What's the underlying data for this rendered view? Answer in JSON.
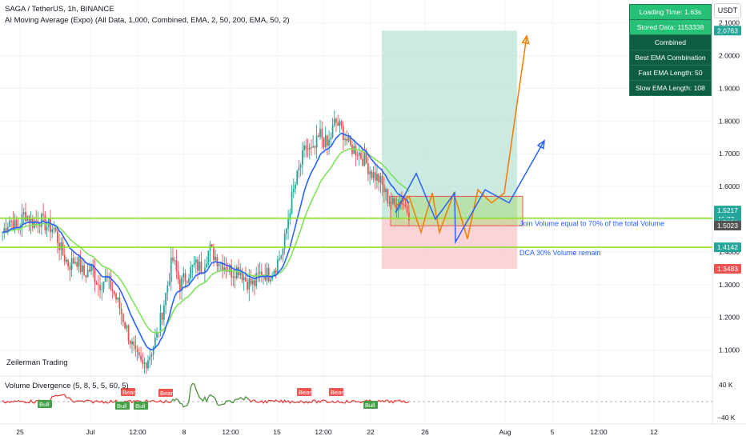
{
  "header": {
    "symbol_line": "SAGA / TetherUS, 1h, BINANCE",
    "indicator_line": "AI Moving Average (Expo) (All Data, 1,000, Combined, EMA, 2, 50, 200, EMA, 50, 2)"
  },
  "currency": "USDT",
  "watermark": "Zeilerman Trading",
  "info_table": {
    "loading_time": "Loading Time: 1.63s",
    "stored_data": "Stored Data: 1153338",
    "mode": "Combined",
    "best": "Best EMA Combination",
    "fast": "Fast EMA Length: 50",
    "slow": "Slow EMA Length: 108"
  },
  "annotations": {
    "join": "Join Volume equal to 70% of the total Volume",
    "dca": "DCA 30% Volume remain"
  },
  "lower_pane": {
    "title": "Volume Divergence (5, 8, 5, 5, 60, 5)",
    "axis_labels": [
      "40 K",
      "−40 K"
    ],
    "bear_label": "Bear",
    "bull_label": "Bull"
  },
  "colors": {
    "up": "#26a69a",
    "down": "#ef5350",
    "blue_ema": "#2962ff",
    "green_ema": "#7ee35a",
    "projection_orange": "#f57c00",
    "projection_blue": "#2962ff",
    "level_lime": "#8de026",
    "target_zone": "#a8dccd",
    "stop_zone": "#f8c5c9"
  },
  "chart_data": {
    "type": "candlestick",
    "price_axis_ticks": [
      "2.1000",
      "2.0000",
      "1.9000",
      "1.8000",
      "1.7000",
      "1.6000",
      "1.5000",
      "1.4000",
      "1.3000",
      "1.2000",
      "1.1000"
    ],
    "price_labels": [
      {
        "text": "2.0763",
        "value": 2.0763,
        "color": "#26a69a"
      },
      {
        "text": "1.5217",
        "value": 1.5217,
        "color": "#26a69a"
      },
      {
        "text": "46:27",
        "value": 1.5217,
        "color": "#26a69a"
      },
      {
        "text": "1.5031",
        "value": 1.5031,
        "color": "#26a69a"
      },
      {
        "text": "1.5023",
        "value": 1.5023,
        "color": "#555555"
      },
      {
        "text": "1.4142",
        "value": 1.4142,
        "color": "#26a69a"
      },
      {
        "text": "1.3483",
        "value": 1.3483,
        "color": "#ef5350"
      }
    ],
    "time_axis_ticks": [
      "25",
      "Jul",
      "12:00",
      "8",
      "12:00",
      "15",
      "12:00",
      "22",
      "26",
      "Aug",
      "5",
      "12:00",
      "12"
    ],
    "levels": [
      1.5031,
      1.4142
    ],
    "long_position": {
      "entry": 1.5023,
      "target": 2.0763,
      "stop": 1.3483
    },
    "entry_box": [
      1.48,
      1.57
    ],
    "projection_orange": [
      1.54,
      1.57,
      1.46,
      1.58,
      1.46,
      1.58,
      1.44,
      1.59,
      1.55,
      1.58,
      2.06
    ],
    "projection_blue": [
      1.52,
      1.64,
      1.5,
      1.58,
      1.43,
      1.59,
      1.55,
      1.74
    ],
    "close_path": [
      1.46,
      1.5,
      1.47,
      1.52,
      1.49,
      1.5,
      1.48,
      1.47,
      1.4,
      1.36,
      1.38,
      1.33,
      1.35,
      1.3,
      1.32,
      1.28,
      1.22,
      1.15,
      1.08,
      1.05,
      1.09,
      1.15,
      1.26,
      1.38,
      1.3,
      1.33,
      1.36,
      1.35,
      1.41,
      1.38,
      1.36,
      1.34,
      1.35,
      1.31,
      1.3,
      1.34,
      1.33,
      1.36,
      1.41,
      1.55,
      1.64,
      1.72,
      1.7,
      1.76,
      1.72,
      1.8,
      1.77,
      1.72,
      1.71,
      1.68,
      1.64,
      1.62,
      1.57,
      1.54,
      1.56,
      1.52
    ]
  }
}
